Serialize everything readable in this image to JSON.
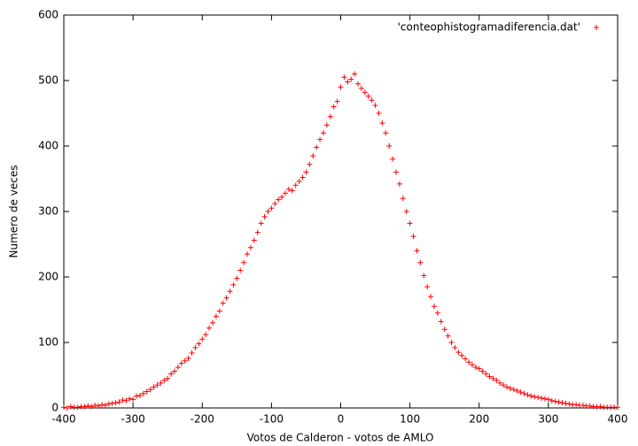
{
  "chart_data": {
    "type": "scatter",
    "xlabel": "Votos de Calderon - votos de AMLO",
    "ylabel": "Numero de veces",
    "xlim": [
      -400,
      400
    ],
    "xticks": [
      -400,
      -300,
      -200,
      -100,
      0,
      100,
      200,
      300,
      400
    ],
    "ylim": [
      0,
      600
    ],
    "yticks": [
      0,
      100,
      200,
      300,
      400,
      500,
      600
    ],
    "grid": false,
    "legend": "top-right",
    "series": [
      {
        "name": "'conteophistogramadiferencia.dat'",
        "color": "#ff0000",
        "x": [
          -400,
          -395,
          -390,
          -385,
          -380,
          -375,
          -370,
          -365,
          -360,
          -355,
          -350,
          -345,
          -340,
          -335,
          -330,
          -325,
          -320,
          -315,
          -310,
          -305,
          -300,
          -295,
          -290,
          -285,
          -280,
          -275,
          -270,
          -265,
          -260,
          -255,
          -250,
          -245,
          -240,
          -235,
          -230,
          -225,
          -220,
          -215,
          -210,
          -205,
          -200,
          -195,
          -190,
          -185,
          -180,
          -175,
          -170,
          -165,
          -160,
          -155,
          -150,
          -145,
          -140,
          -135,
          -130,
          -125,
          -120,
          -115,
          -110,
          -105,
          -100,
          -95,
          -90,
          -85,
          -80,
          -75,
          -70,
          -65,
          -60,
          -55,
          -50,
          -45,
          -40,
          -35,
          -30,
          -25,
          -20,
          -15,
          -10,
          -5,
          0,
          5,
          10,
          15,
          20,
          25,
          30,
          35,
          40,
          45,
          50,
          55,
          60,
          65,
          70,
          75,
          80,
          85,
          90,
          95,
          100,
          105,
          110,
          115,
          120,
          125,
          130,
          135,
          140,
          145,
          150,
          155,
          160,
          165,
          170,
          175,
          180,
          185,
          190,
          195,
          200,
          205,
          210,
          215,
          220,
          225,
          230,
          235,
          240,
          245,
          250,
          255,
          260,
          265,
          270,
          275,
          280,
          285,
          290,
          295,
          300,
          305,
          310,
          315,
          320,
          325,
          330,
          335,
          340,
          345,
          350,
          355,
          360,
          365,
          370,
          375,
          380,
          385,
          390,
          395,
          400
        ],
        "values": [
          1,
          0,
          2,
          1,
          1,
          2,
          2,
          3,
          2,
          4,
          3,
          5,
          4,
          6,
          7,
          8,
          9,
          12,
          11,
          14,
          13,
          18,
          19,
          22,
          25,
          28,
          32,
          35,
          38,
          42,
          45,
          52,
          56,
          62,
          68,
          72,
          76,
          84,
          92,
          98,
          105,
          112,
          122,
          130,
          140,
          148,
          160,
          168,
          178,
          188,
          198,
          210,
          222,
          235,
          245,
          256,
          268,
          282,
          292,
          300,
          305,
          312,
          318,
          322,
          328,
          334,
          332,
          340,
          346,
          352,
          360,
          372,
          385,
          398,
          410,
          420,
          432,
          445,
          460,
          468,
          490,
          505,
          498,
          502,
          510,
          495,
          488,
          482,
          476,
          470,
          462,
          450,
          435,
          420,
          400,
          380,
          360,
          342,
          320,
          300,
          282,
          262,
          240,
          222,
          202,
          185,
          170,
          155,
          145,
          132,
          120,
          110,
          100,
          92,
          85,
          80,
          75,
          70,
          66,
          62,
          60,
          56,
          52,
          48,
          45,
          42,
          38,
          35,
          32,
          30,
          28,
          26,
          24,
          22,
          20,
          18,
          17,
          16,
          15,
          14,
          13,
          11,
          10,
          9,
          8,
          7,
          6,
          5,
          5,
          4,
          4,
          3,
          3,
          2,
          2,
          2,
          1,
          1,
          1,
          1,
          1
        ]
      }
    ]
  }
}
